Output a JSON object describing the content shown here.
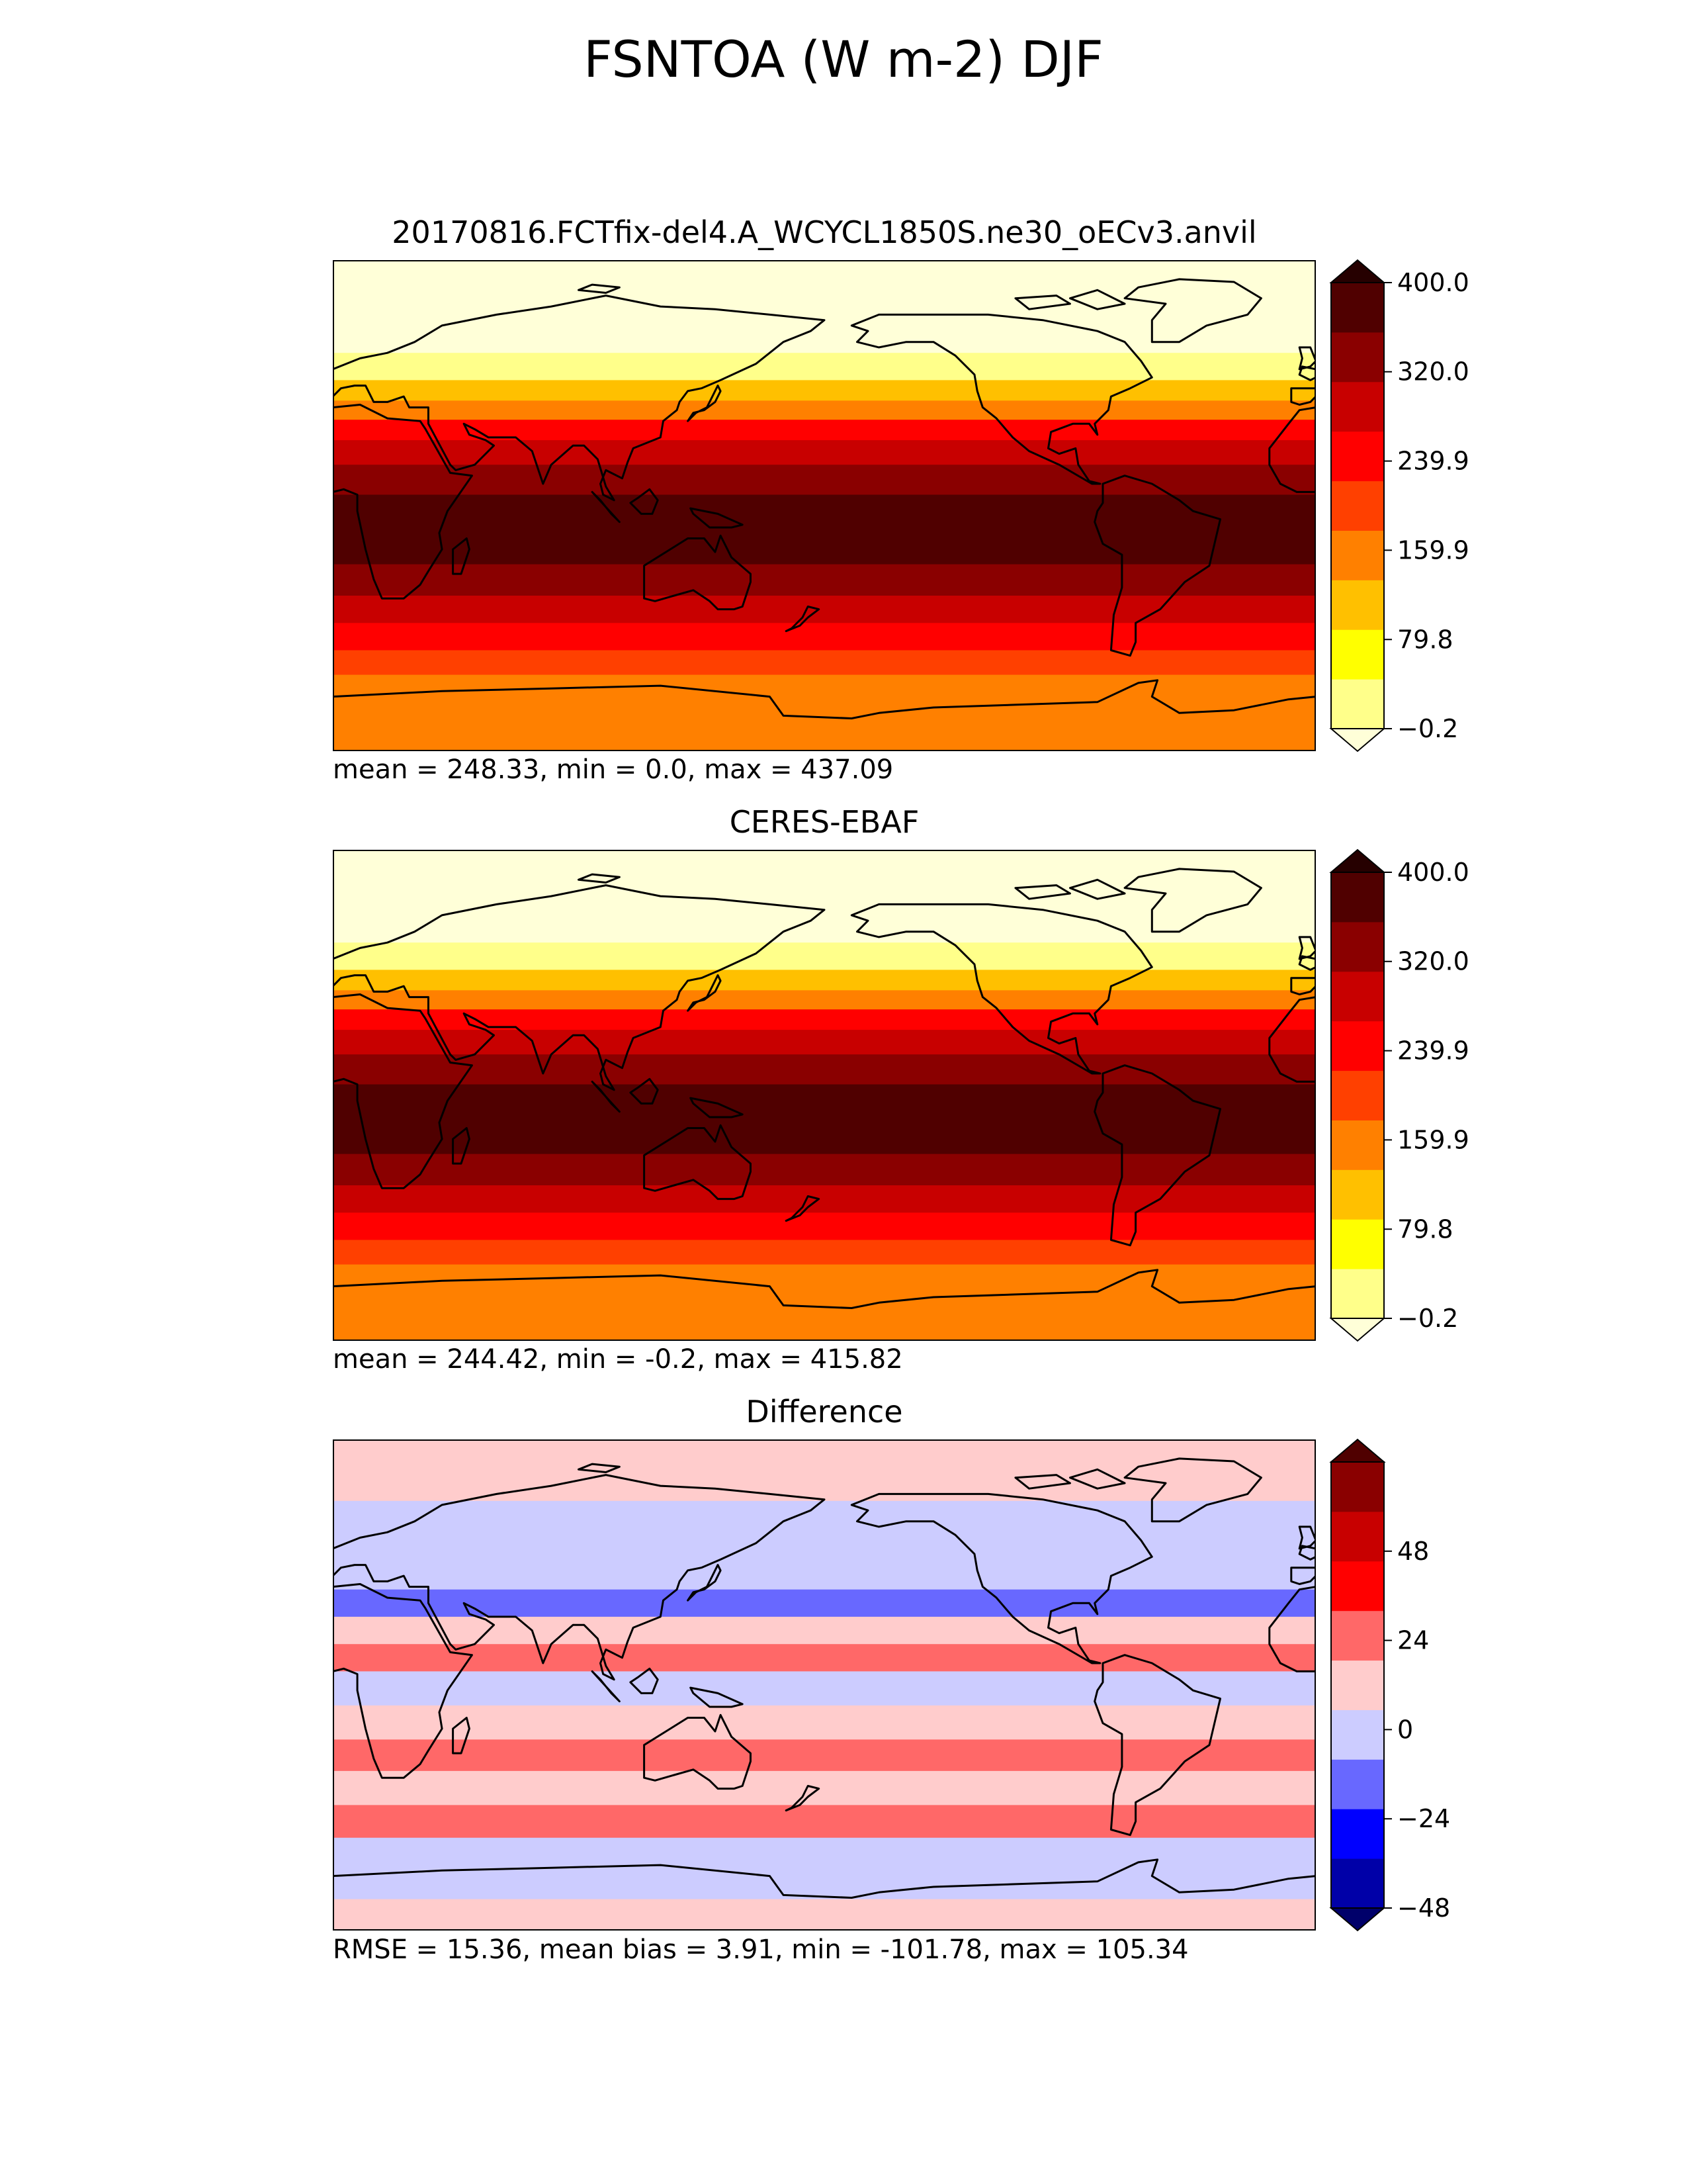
{
  "title": "FSNTOA (W m-2) DJF",
  "chart_data": [
    {
      "type": "heatmap",
      "title": "20170816.FCTfix-del4.A_WCYCL1850S.ne30_oECv3.anvil",
      "stats": "mean = 248.33, min = 0.0, max = 437.09",
      "colorbar": {
        "levels": [
          -0.2,
          40.0,
          79.8,
          119.9,
          159.9,
          199.9,
          239.9,
          280.0,
          320.0,
          360.0,
          400.0
        ],
        "tick_labels": [
          "−0.2",
          "79.8",
          "159.9",
          "239.9",
          "320.0",
          "400.0"
        ],
        "colors": [
          "#ffffd8",
          "#ffff8a",
          "#ffff00",
          "#ffc000",
          "#ff8000",
          "#ff4000",
          "#ff0000",
          "#c80000",
          "#8a0000",
          "#500000",
          "#260000"
        ],
        "extend": "both"
      },
      "bands": [
        {
          "lat": 82,
          "value": 0
        },
        {
          "lat": 62,
          "value": 25
        },
        {
          "lat": 50,
          "value": 75
        },
        {
          "lat": 42,
          "value": 140
        },
        {
          "lat": 35,
          "value": 190
        },
        {
          "lat": 28,
          "value": 245
        },
        {
          "lat": 20,
          "value": 300
        },
        {
          "lat": 10,
          "value": 340
        },
        {
          "lat": -2,
          "value": 385
        },
        {
          "lat": -15,
          "value": 395
        },
        {
          "lat": -28,
          "value": 345
        },
        {
          "lat": -38,
          "value": 300
        },
        {
          "lat": -48,
          "value": 250
        },
        {
          "lat": -58,
          "value": 210
        },
        {
          "lat": -66,
          "value": 180
        },
        {
          "lat": -85,
          "value": 175
        }
      ]
    },
    {
      "type": "heatmap",
      "title": "CERES-EBAF",
      "stats": "mean = 244.42, min = -0.2, max = 415.82",
      "colorbar": {
        "levels": [
          -0.2,
          40.0,
          79.8,
          119.9,
          159.9,
          199.9,
          239.9,
          280.0,
          320.0,
          360.0,
          400.0
        ],
        "tick_labels": [
          "−0.2",
          "79.8",
          "159.9",
          "239.9",
          "320.0",
          "400.0"
        ],
        "colors": [
          "#ffffd8",
          "#ffff8a",
          "#ffff00",
          "#ffc000",
          "#ff8000",
          "#ff4000",
          "#ff0000",
          "#c80000",
          "#8a0000",
          "#500000",
          "#260000"
        ],
        "extend": "both"
      },
      "bands": [
        {
          "lat": 82,
          "value": 0
        },
        {
          "lat": 62,
          "value": 20
        },
        {
          "lat": 50,
          "value": 70
        },
        {
          "lat": 42,
          "value": 135
        },
        {
          "lat": 35,
          "value": 185
        },
        {
          "lat": 28,
          "value": 240
        },
        {
          "lat": 20,
          "value": 290
        },
        {
          "lat": 10,
          "value": 330
        },
        {
          "lat": -2,
          "value": 370
        },
        {
          "lat": -15,
          "value": 385
        },
        {
          "lat": -28,
          "value": 340
        },
        {
          "lat": -38,
          "value": 295
        },
        {
          "lat": -48,
          "value": 245
        },
        {
          "lat": -58,
          "value": 205
        },
        {
          "lat": -66,
          "value": 175
        },
        {
          "lat": -85,
          "value": 170
        }
      ]
    },
    {
      "type": "heatmap",
      "title": "Difference",
      "stats": "RMSE = 15.36, mean bias = 3.91, min = -101.78, max = 105.34",
      "colorbar": {
        "levels": [
          -60,
          -48,
          -36,
          -24,
          -12,
          0,
          12,
          24,
          36,
          48,
          60
        ],
        "tick_labels": [
          "−48",
          "−24",
          "0",
          "24",
          "48"
        ],
        "colors": [
          "#00006a",
          "#0000a8",
          "#0000ff",
          "#6868ff",
          "#ccccff",
          "#ffcccc",
          "#ff6868",
          "#ff0000",
          "#c80000",
          "#8a0000",
          "#500000"
        ],
        "extend": "both"
      },
      "bands": [
        {
          "lat": 80,
          "value": 6
        },
        {
          "lat": 55,
          "value": -6
        },
        {
          "lat": 40,
          "value": -8
        },
        {
          "lat": 30,
          "value": -14
        },
        {
          "lat": 20,
          "value": 4
        },
        {
          "lat": 10,
          "value": 14
        },
        {
          "lat": 0,
          "value": -5
        },
        {
          "lat": -15,
          "value": 10
        },
        {
          "lat": -25,
          "value": 18
        },
        {
          "lat": -38,
          "value": 6
        },
        {
          "lat": -50,
          "value": 20
        },
        {
          "lat": -62,
          "value": -5
        },
        {
          "lat": -72,
          "value": -4
        },
        {
          "lat": -85,
          "value": 5
        }
      ]
    }
  ]
}
